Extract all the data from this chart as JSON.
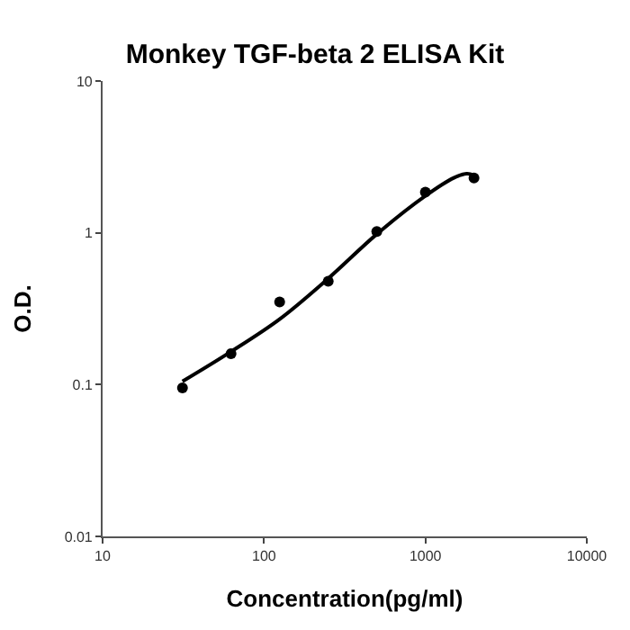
{
  "chart_data": {
    "type": "scatter",
    "title": "Monkey TGF-beta 2 ELISA Kit",
    "xlabel": "Concentration(pg/ml)",
    "ylabel": "O.D.",
    "log": "xy",
    "xlim": [
      10,
      10000
    ],
    "ylim": [
      0.01,
      10
    ],
    "xticks": [
      10,
      100,
      1000,
      10000
    ],
    "yticks": [
      0.01,
      0.1,
      1,
      10
    ],
    "marker": "circle",
    "series": [
      {
        "color": "#000000",
        "x": [
          31.25,
          62.5,
          125,
          250,
          500,
          1000,
          2000
        ],
        "values": [
          0.095,
          0.16,
          0.35,
          0.48,
          1.02,
          1.85,
          2.3
        ]
      },
      {
        "type": "line",
        "color": "#000000",
        "marker": "none",
        "line_style": "solid",
        "x": [
          31.25,
          62.5,
          125,
          250,
          500,
          1000,
          1500,
          1800,
          2000
        ],
        "values": [
          0.105,
          0.165,
          0.27,
          0.5,
          0.98,
          1.75,
          2.3,
          2.45,
          2.4
        ]
      }
    ]
  }
}
